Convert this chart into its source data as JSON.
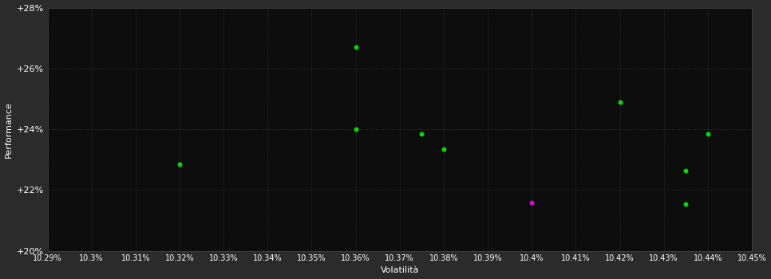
{
  "background_color": "#2b2b2b",
  "plot_bg_color": "#0d0d0d",
  "text_color": "#ffffff",
  "xlabel": "Volatilità",
  "ylabel": "Performance",
  "xlim": [
    10.29,
    10.45
  ],
  "ylim": [
    20.0,
    28.0
  ],
  "xticks": [
    10.29,
    10.3,
    10.31,
    10.32,
    10.33,
    10.34,
    10.35,
    10.36,
    10.37,
    10.38,
    10.39,
    10.4,
    10.41,
    10.42,
    10.43,
    10.44,
    10.45
  ],
  "yticks": [
    20,
    22,
    24,
    26,
    28
  ],
  "ytick_labels": [
    "+20%",
    "+22%",
    "+24%",
    "+26%",
    "+28%"
  ],
  "xtick_labels": [
    "10.29%",
    "10.3%",
    "10.31%",
    "10.32%",
    "10.33%",
    "10.34%",
    "10.35%",
    "10.36%",
    "10.37%",
    "10.38%",
    "10.39%",
    "10.4%",
    "10.41%",
    "10.42%",
    "10.43%",
    "10.44%",
    "10.45%"
  ],
  "green_points": [
    [
      10.32,
      22.85
    ],
    [
      10.36,
      26.7
    ],
    [
      10.36,
      24.0
    ],
    [
      10.375,
      23.85
    ],
    [
      10.38,
      23.35
    ],
    [
      10.42,
      24.9
    ],
    [
      10.435,
      22.65
    ],
    [
      10.44,
      23.85
    ],
    [
      10.435,
      21.55
    ]
  ],
  "magenta_points": [
    [
      10.4,
      21.6
    ]
  ],
  "point_size": 18,
  "green_color": "#00dd00",
  "magenta_color": "#dd00dd"
}
